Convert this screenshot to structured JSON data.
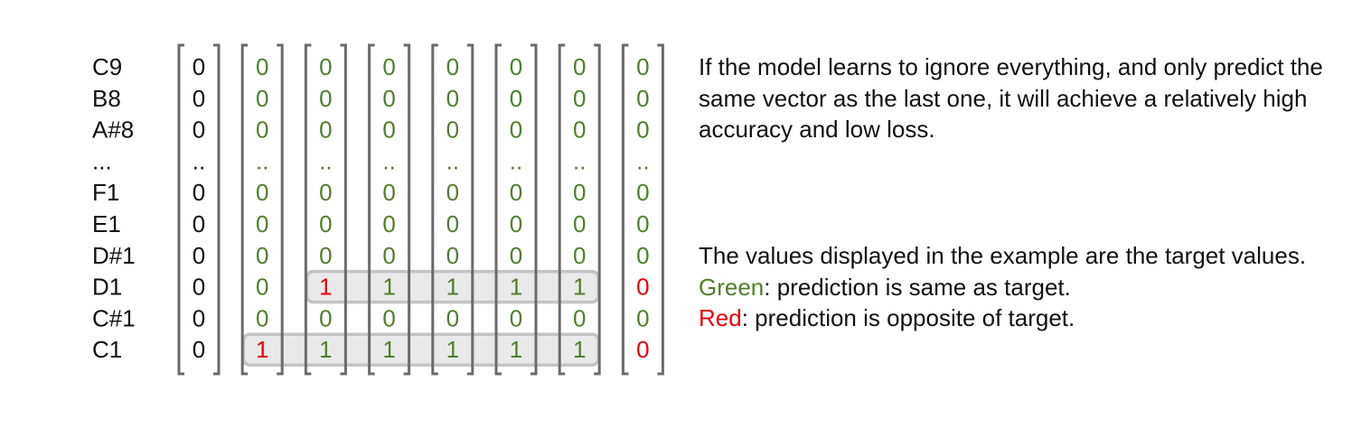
{
  "diagram": {
    "row_labels": [
      "C9",
      "B8",
      "A#8",
      "...",
      "F1",
      "E1",
      "D#1",
      "D1",
      "C#1",
      "C1"
    ],
    "columns": [
      [
        "0",
        "0",
        "0",
        "..",
        "0",
        "0",
        "0",
        "0",
        "0",
        "0"
      ],
      [
        "0",
        "0",
        "0",
        "..",
        "0",
        "0",
        "0",
        "0",
        "0",
        "1"
      ],
      [
        "0",
        "0",
        "0",
        "..",
        "0",
        "0",
        "0",
        "1",
        "0",
        "1"
      ],
      [
        "0",
        "0",
        "0",
        "..",
        "0",
        "0",
        "0",
        "1",
        "0",
        "1"
      ],
      [
        "0",
        "0",
        "0",
        "..",
        "0",
        "0",
        "0",
        "1",
        "0",
        "1"
      ],
      [
        "0",
        "0",
        "0",
        "..",
        "0",
        "0",
        "0",
        "1",
        "0",
        "1"
      ],
      [
        "0",
        "0",
        "0",
        "..",
        "0",
        "0",
        "0",
        "1",
        "0",
        "1"
      ],
      [
        "0",
        "0",
        "0",
        "..",
        "0",
        "0",
        "0",
        "0",
        "0",
        "0"
      ]
    ],
    "cell_status": [
      [
        "n",
        "n",
        "n",
        "n",
        "n",
        "n",
        "n",
        "n",
        "n",
        "n"
      ],
      [
        "g",
        "g",
        "g",
        "g",
        "g",
        "g",
        "g",
        "g",
        "g",
        "r"
      ],
      [
        "g",
        "g",
        "g",
        "g",
        "g",
        "g",
        "g",
        "r",
        "g",
        "g"
      ],
      [
        "g",
        "g",
        "g",
        "g",
        "g",
        "g",
        "g",
        "g",
        "g",
        "g"
      ],
      [
        "g",
        "g",
        "g",
        "g",
        "g",
        "g",
        "g",
        "g",
        "g",
        "g"
      ],
      [
        "g",
        "g",
        "g",
        "g",
        "g",
        "g",
        "g",
        "g",
        "g",
        "g"
      ],
      [
        "g",
        "g",
        "g",
        "g",
        "g",
        "g",
        "g",
        "g",
        "g",
        "g"
      ],
      [
        "g",
        "g",
        "g",
        "g",
        "g",
        "g",
        "g",
        "r",
        "g",
        "r"
      ]
    ],
    "highlights": [
      {
        "row": 7,
        "from_col": 2,
        "to_col": 6
      },
      {
        "row": 9,
        "from_col": 1,
        "to_col": 6
      }
    ],
    "colors": {
      "neutral": "#111111",
      "correct": "#4f7f2c",
      "wrong": "#e8000b",
      "bracket": "#6b6b6b",
      "highlight_fill": "#e9e9e9",
      "highlight_stroke": "#c4c4c4"
    }
  },
  "explanation": {
    "paragraph_1": "If the model learns to ignore everything, and only predict the same vector as the last one, it will achieve a relatively high accuracy and low loss.",
    "paragraph_2": "The values displayed in the example are the target values.",
    "legend_green_word": "Green",
    "legend_green_text": ": prediction is same as target.",
    "legend_red_word": "Red",
    "legend_red_text": ": prediction is opposite of target."
  }
}
